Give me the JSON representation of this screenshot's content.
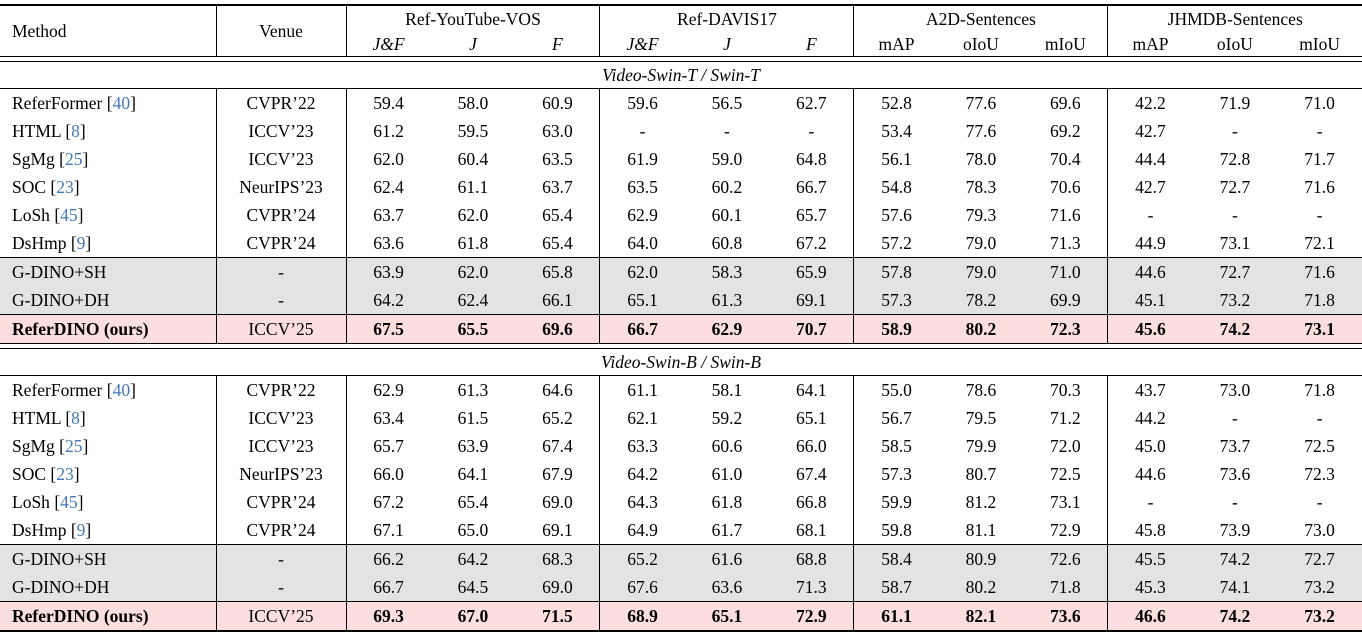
{
  "table": {
    "header": {
      "method": "Method",
      "venue": "Venue"
    },
    "groups": [
      {
        "name": "Ref-YouTube-VOS",
        "italic_subs": true,
        "subs": [
          "J&F",
          "J",
          "F"
        ]
      },
      {
        "name": "Ref-DAVIS17",
        "italic_subs": true,
        "subs": [
          "J&F",
          "J",
          "F"
        ]
      },
      {
        "name": "A2D-Sentences",
        "italic_subs": false,
        "subs": [
          "mAP",
          "oIoU",
          "mIoU"
        ]
      },
      {
        "name": "JHMDB-Sentences",
        "italic_subs": false,
        "subs": [
          "mAP",
          "oIoU",
          "mIoU"
        ]
      }
    ],
    "sections": [
      {
        "title": "Video-Swin-T / Swin-T",
        "rows": [
          {
            "method": "ReferFormer",
            "cite": "40",
            "venue": "CVPR’22",
            "style": "",
            "rule_above": false,
            "values": [
              "59.4",
              "58.0",
              "60.9",
              "59.6",
              "56.5",
              "62.7",
              "52.8",
              "77.6",
              "69.6",
              "42.2",
              "71.9",
              "71.0"
            ]
          },
          {
            "method": "HTML",
            "cite": "8",
            "venue": "ICCV’23",
            "style": "",
            "rule_above": false,
            "values": [
              "61.2",
              "59.5",
              "63.0",
              "-",
              "-",
              "-",
              "53.4",
              "77.6",
              "69.2",
              "42.7",
              "-",
              "-"
            ]
          },
          {
            "method": "SgMg",
            "cite": "25",
            "venue": "ICCV’23",
            "style": "",
            "rule_above": false,
            "values": [
              "62.0",
              "60.4",
              "63.5",
              "61.9",
              "59.0",
              "64.8",
              "56.1",
              "78.0",
              "70.4",
              "44.4",
              "72.8",
              "71.7"
            ]
          },
          {
            "method": "SOC",
            "cite": "23",
            "venue": "NeurIPS’23",
            "style": "",
            "rule_above": false,
            "values": [
              "62.4",
              "61.1",
              "63.7",
              "63.5",
              "60.2",
              "66.7",
              "54.8",
              "78.3",
              "70.6",
              "42.7",
              "72.7",
              "71.6"
            ]
          },
          {
            "method": "LoSh",
            "cite": "45",
            "venue": "CVPR’24",
            "style": "",
            "rule_above": false,
            "values": [
              "63.7",
              "62.0",
              "65.4",
              "62.9",
              "60.1",
              "65.7",
              "57.6",
              "79.3",
              "71.6",
              "-",
              "-",
              "-"
            ]
          },
          {
            "method": "DsHmp",
            "cite": "9",
            "venue": "CVPR’24",
            "style": "",
            "rule_above": false,
            "values": [
              "63.6",
              "61.8",
              "65.4",
              "64.0",
              "60.8",
              "67.2",
              "57.2",
              "79.0",
              "71.3",
              "44.9",
              "73.1",
              "72.1"
            ]
          },
          {
            "method": "G-DINO+SH",
            "cite": "",
            "venue": "-",
            "style": "gray",
            "rule_above": true,
            "values": [
              "63.9",
              "62.0",
              "65.8",
              "62.0",
              "58.3",
              "65.9",
              "57.8",
              "79.0",
              "71.0",
              "44.6",
              "72.7",
              "71.6"
            ]
          },
          {
            "method": "G-DINO+DH",
            "cite": "",
            "venue": "-",
            "style": "gray",
            "rule_above": false,
            "values": [
              "64.2",
              "62.4",
              "66.1",
              "65.1",
              "61.3",
              "69.1",
              "57.3",
              "78.2",
              "69.9",
              "45.1",
              "73.2",
              "71.8"
            ]
          },
          {
            "method": "ReferDINO (ours)",
            "cite": "",
            "venue": "ICCV’25",
            "style": "ours",
            "rule_above": true,
            "values": [
              "67.5",
              "65.5",
              "69.6",
              "66.7",
              "62.9",
              "70.7",
              "58.9",
              "80.2",
              "72.3",
              "45.6",
              "74.2",
              "73.1"
            ]
          }
        ]
      },
      {
        "title": "Video-Swin-B / Swin-B",
        "rows": [
          {
            "method": "ReferFormer",
            "cite": "40",
            "venue": "CVPR’22",
            "style": "",
            "rule_above": false,
            "values": [
              "62.9",
              "61.3",
              "64.6",
              "61.1",
              "58.1",
              "64.1",
              "55.0",
              "78.6",
              "70.3",
              "43.7",
              "73.0",
              "71.8"
            ]
          },
          {
            "method": "HTML",
            "cite": "8",
            "venue": "ICCV’23",
            "style": "",
            "rule_above": false,
            "values": [
              "63.4",
              "61.5",
              "65.2",
              "62.1",
              "59.2",
              "65.1",
              "56.7",
              "79.5",
              "71.2",
              "44.2",
              "-",
              "-"
            ]
          },
          {
            "method": "SgMg",
            "cite": "25",
            "venue": "ICCV’23",
            "style": "",
            "rule_above": false,
            "values": [
              "65.7",
              "63.9",
              "67.4",
              "63.3",
              "60.6",
              "66.0",
              "58.5",
              "79.9",
              "72.0",
              "45.0",
              "73.7",
              "72.5"
            ]
          },
          {
            "method": "SOC",
            "cite": "23",
            "venue": "NeurIPS’23",
            "style": "",
            "rule_above": false,
            "values": [
              "66.0",
              "64.1",
              "67.9",
              "64.2",
              "61.0",
              "67.4",
              "57.3",
              "80.7",
              "72.5",
              "44.6",
              "73.6",
              "72.3"
            ]
          },
          {
            "method": "LoSh",
            "cite": "45",
            "venue": "CVPR’24",
            "style": "",
            "rule_above": false,
            "values": [
              "67.2",
              "65.4",
              "69.0",
              "64.3",
              "61.8",
              "66.8",
              "59.9",
              "81.2",
              "73.1",
              "-",
              "-",
              "-"
            ]
          },
          {
            "method": "DsHmp",
            "cite": "9",
            "venue": "CVPR’24",
            "style": "",
            "rule_above": false,
            "values": [
              "67.1",
              "65.0",
              "69.1",
              "64.9",
              "61.7",
              "68.1",
              "59.8",
              "81.1",
              "72.9",
              "45.8",
              "73.9",
              "73.0"
            ]
          },
          {
            "method": "G-DINO+SH",
            "cite": "",
            "venue": "-",
            "style": "gray",
            "rule_above": true,
            "values": [
              "66.2",
              "64.2",
              "68.3",
              "65.2",
              "61.6",
              "68.8",
              "58.4",
              "80.9",
              "72.6",
              "45.5",
              "74.2",
              "72.7"
            ]
          },
          {
            "method": "G-DINO+DH",
            "cite": "",
            "venue": "-",
            "style": "gray",
            "rule_above": false,
            "values": [
              "66.7",
              "64.5",
              "69.0",
              "67.6",
              "63.6",
              "71.3",
              "58.7",
              "80.2",
              "71.8",
              "45.3",
              "74.1",
              "73.2"
            ]
          },
          {
            "method": "ReferDINO (ours)",
            "cite": "",
            "venue": "ICCV’25",
            "style": "ours",
            "rule_above": true,
            "values": [
              "69.3",
              "67.0",
              "71.5",
              "68.9",
              "65.1",
              "72.9",
              "61.1",
              "82.1",
              "73.6",
              "46.6",
              "74.2",
              "73.2"
            ]
          }
        ]
      }
    ],
    "colors": {
      "citation": "#4478b9",
      "gray_row": "#e3e3e3",
      "ours_row": "#fcdede"
    }
  }
}
